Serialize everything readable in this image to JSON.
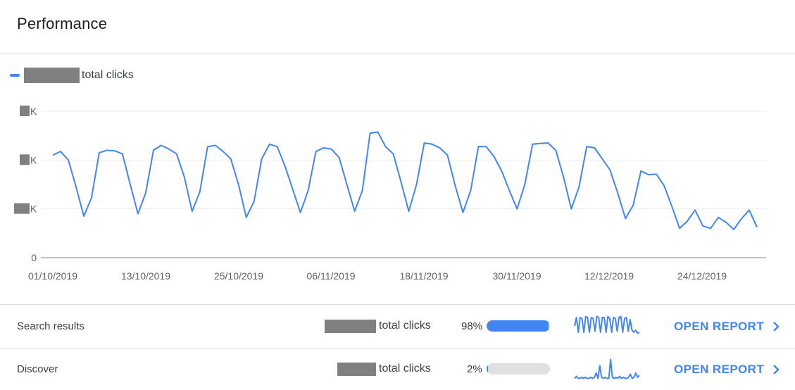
{
  "card": {
    "title": "Performance"
  },
  "legend": {
    "label": "total clicks",
    "color": "#4285f4"
  },
  "chart_data": {
    "type": "line",
    "series": [
      {
        "name": "total clicks",
        "color": "#4285f4",
        "values": [
          4.2,
          4.35,
          4.0,
          2.9,
          1.7,
          2.45,
          4.3,
          4.4,
          4.38,
          4.25,
          3.0,
          1.8,
          2.65,
          4.4,
          4.6,
          4.45,
          4.25,
          3.3,
          1.9,
          2.7,
          4.55,
          4.6,
          4.35,
          4.05,
          3.0,
          1.65,
          2.3,
          4.05,
          4.65,
          4.55,
          3.75,
          2.8,
          1.85,
          2.75,
          4.35,
          4.5,
          4.45,
          4.1,
          3.0,
          1.9,
          2.75,
          5.1,
          5.15,
          4.55,
          4.25,
          3.1,
          1.9,
          3.0,
          4.7,
          4.65,
          4.5,
          4.2,
          2.95,
          1.85,
          2.75,
          4.55,
          4.55,
          4.15,
          3.55,
          2.75,
          2.0,
          3.0,
          4.65,
          4.68,
          4.7,
          4.4,
          3.3,
          2.0,
          2.9,
          4.55,
          4.5,
          4.05,
          3.6,
          2.65,
          1.6,
          2.15,
          3.55,
          3.4,
          3.42,
          2.95,
          2.1,
          1.2,
          1.5,
          1.95,
          1.3,
          1.2,
          1.65,
          1.45,
          1.15,
          1.6,
          1.95,
          1.25
        ]
      }
    ],
    "x_tick_labels": [
      "01/10/2019",
      "13/10/2019",
      "25/10/2019",
      "06/11/2019",
      "18/11/2019",
      "30/11/2019",
      "12/12/2019",
      "24/12/2019"
    ],
    "y_tick_labels": [
      "0",
      "K",
      "K",
      "K"
    ],
    "ylim": [
      0,
      6
    ],
    "grid": true
  },
  "rows": [
    {
      "label": "Search results",
      "clicks_suffix": "total clicks",
      "percent_text": "98%",
      "percent": 98,
      "action": "OPEN REPORT",
      "spark": [
        0.5,
        0.9,
        0.2,
        0.9,
        0.85,
        0.2,
        0.95,
        0.9,
        0.2,
        0.9,
        0.85,
        0.25,
        0.95,
        0.9,
        0.2,
        0.9,
        0.9,
        0.2,
        0.95,
        0.85,
        0.2,
        0.9,
        0.85,
        0.25,
        0.9,
        0.95,
        0.2,
        0.85,
        0.9,
        0.25,
        0.8,
        0.3,
        0.2,
        0.3,
        0.15,
        0.2
      ]
    },
    {
      "label": "Discover",
      "clicks_suffix": "total clicks",
      "percent_text": "2%",
      "percent": 2,
      "action": "OPEN REPORT",
      "spark": [
        0.05,
        0.15,
        0.05,
        0.05,
        0.1,
        0.05,
        0.1,
        0.05,
        0.05,
        0.1,
        0.05,
        0.1,
        0.3,
        0.05,
        0.65,
        0.1,
        0.05,
        0.1,
        0.05,
        0.05,
        0.95,
        0.1,
        0.05,
        0.1,
        0.05,
        0.15,
        0.05,
        0.1,
        0.05,
        0.05,
        0.1,
        0.25,
        0.05,
        0.1,
        0.3,
        0.1,
        0.2
      ]
    }
  ]
}
